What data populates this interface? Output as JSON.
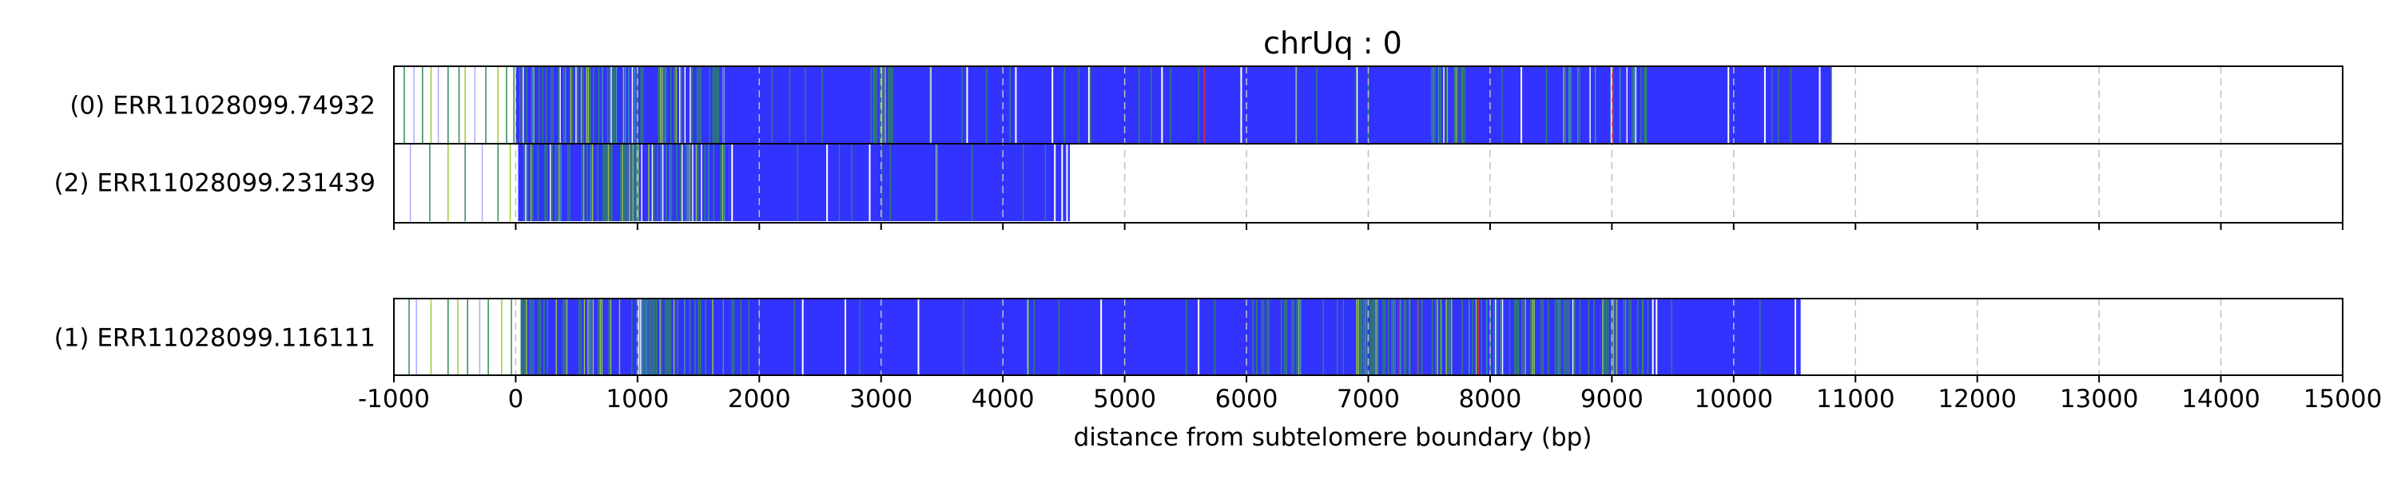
{
  "chart_data": {
    "type": "track",
    "title": "chrUq : 0",
    "xlabel": "distance from subtelomere boundary (bp)",
    "xlim": [
      -1000,
      15000
    ],
    "x_ticks": [
      "-1000",
      "0",
      "1000",
      "2000",
      "3000",
      "4000",
      "5000",
      "6000",
      "7000",
      "8000",
      "9000",
      "10000",
      "11000",
      "12000",
      "13000",
      "14000",
      "15000"
    ],
    "grid": "vertical dashed",
    "colors": {
      "main": "#3333ff",
      "accent_green": "#2e8b57",
      "accent_lime": "#9acd32",
      "accent_teal": "#3aa0a0",
      "accent_red": "#e03030",
      "accent_light": "#aaaaff"
    },
    "groups": [
      {
        "reads": [
          {
            "label": "(0) ERR11028099.74932",
            "start": -1000,
            "end": 10800,
            "dense_start": 1700,
            "sparse_lines": [
              -920,
              -840,
              -770,
              -700,
              -640,
              -560,
              -470,
              -420,
              -340,
              -250,
              -150,
              -80,
              -20
            ],
            "sparse_colors": [
              "accent_green",
              "accent_light",
              "accent_green",
              "accent_lime",
              "accent_light",
              "accent_green",
              "accent_green",
              "accent_lime",
              "accent_light",
              "accent_green",
              "accent_lime",
              "accent_green",
              "accent_green"
            ],
            "busy_ranges": [
              [
                0,
                1700
              ],
              [
                2900,
                3100
              ],
              [
                7500,
                7800
              ],
              [
                8600,
                9300
              ]
            ],
            "gaps": [
              1700,
              3400,
              3700,
              4100,
              4400,
              4700,
              5300,
              5950,
              6400,
              6900,
              8250,
              9950,
              10250,
              10700
            ],
            "accent_lines": [
              5650,
              9000
            ]
          },
          {
            "label": "(2) ERR11028099.231439",
            "start": -1000,
            "end": 4550,
            "dense_start": 1750,
            "sparse_lines": [
              -870,
              -710,
              -560,
              -420,
              -280,
              -150,
              -50
            ],
            "sparse_colors": [
              "accent_light",
              "accent_green",
              "accent_lime",
              "accent_green",
              "accent_light",
              "accent_green",
              "accent_lime"
            ],
            "busy_ranges": [
              [
                20,
                1750
              ]
            ],
            "gaps": [
              1770,
              2550,
              2900,
              3450,
              4420,
              4480,
              4520
            ],
            "accent_lines": []
          }
        ]
      },
      {
        "reads": [
          {
            "label": "(1) ERR11028099.116111",
            "start": -1000,
            "end": 10550,
            "dense_start": 1850,
            "sparse_lines": [
              -880,
              -820,
              -700,
              -560,
              -480,
              -400,
              -300,
              -230,
              -120,
              -40
            ],
            "sparse_colors": [
              "accent_green",
              "accent_light",
              "accent_lime",
              "accent_green",
              "accent_lime",
              "accent_green",
              "accent_light",
              "accent_green",
              "accent_lime",
              "accent_green"
            ],
            "busy_ranges": [
              [
                40,
                1850
              ],
              [
                6050,
                6500
              ],
              [
                6900,
                9300
              ]
            ],
            "gaps": [
              2350,
              2700,
              3300,
              4200,
              4800,
              5600,
              9330,
              9360,
              10500
            ],
            "accent_lines": [
              7250,
              7400,
              7900
            ]
          }
        ]
      }
    ]
  }
}
